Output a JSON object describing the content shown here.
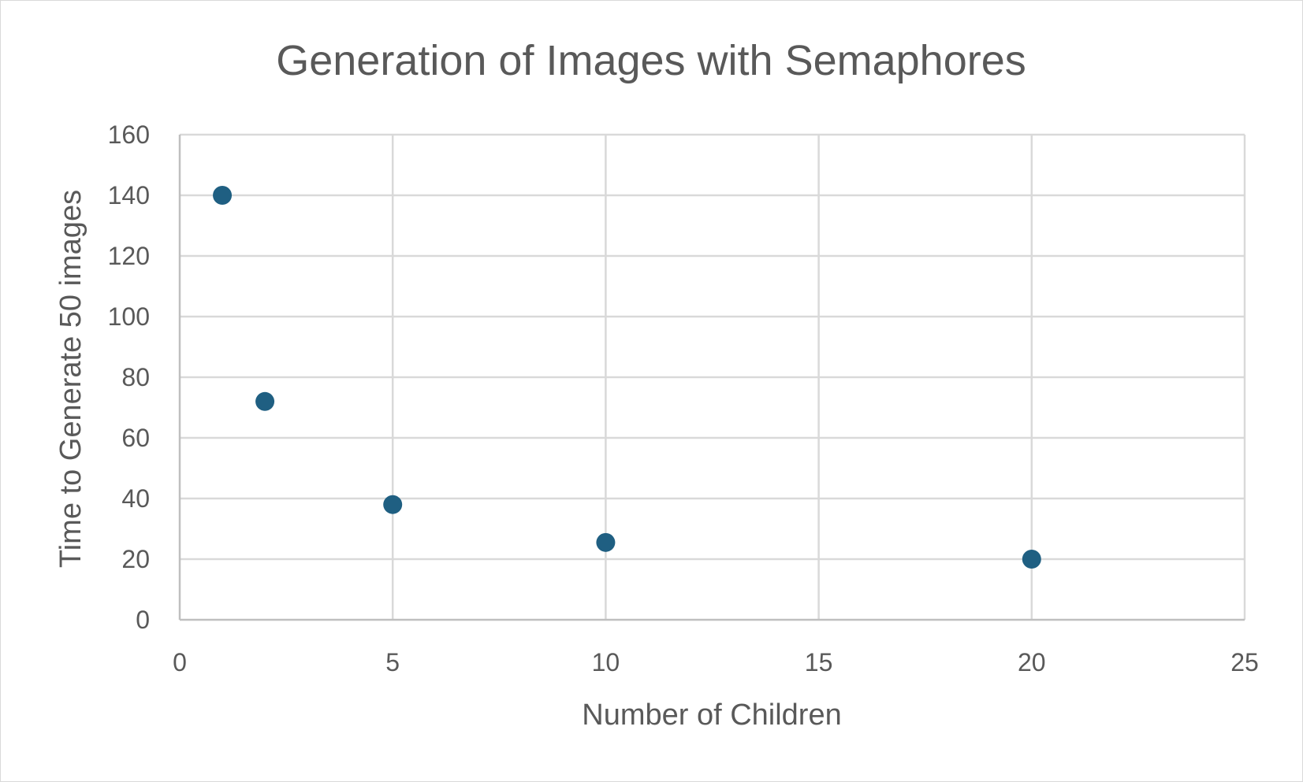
{
  "chart_data": {
    "type": "scatter",
    "title": "Generation of Images with Semaphores",
    "xlabel": "Number of Children",
    "ylabel": "Time to Generate 50 images",
    "xlim": [
      0,
      25
    ],
    "ylim": [
      0,
      160
    ],
    "x_ticks": [
      0,
      5,
      10,
      15,
      20,
      25
    ],
    "y_ticks": [
      0,
      20,
      40,
      60,
      80,
      100,
      120,
      140,
      160
    ],
    "grid": true,
    "legend": "none",
    "series": [
      {
        "name": "Series1",
        "color": "#1f5f82",
        "points": [
          {
            "x": 1,
            "y": 140
          },
          {
            "x": 2,
            "y": 72
          },
          {
            "x": 5,
            "y": 38
          },
          {
            "x": 10,
            "y": 25.5
          },
          {
            "x": 20,
            "y": 20
          }
        ]
      }
    ]
  }
}
